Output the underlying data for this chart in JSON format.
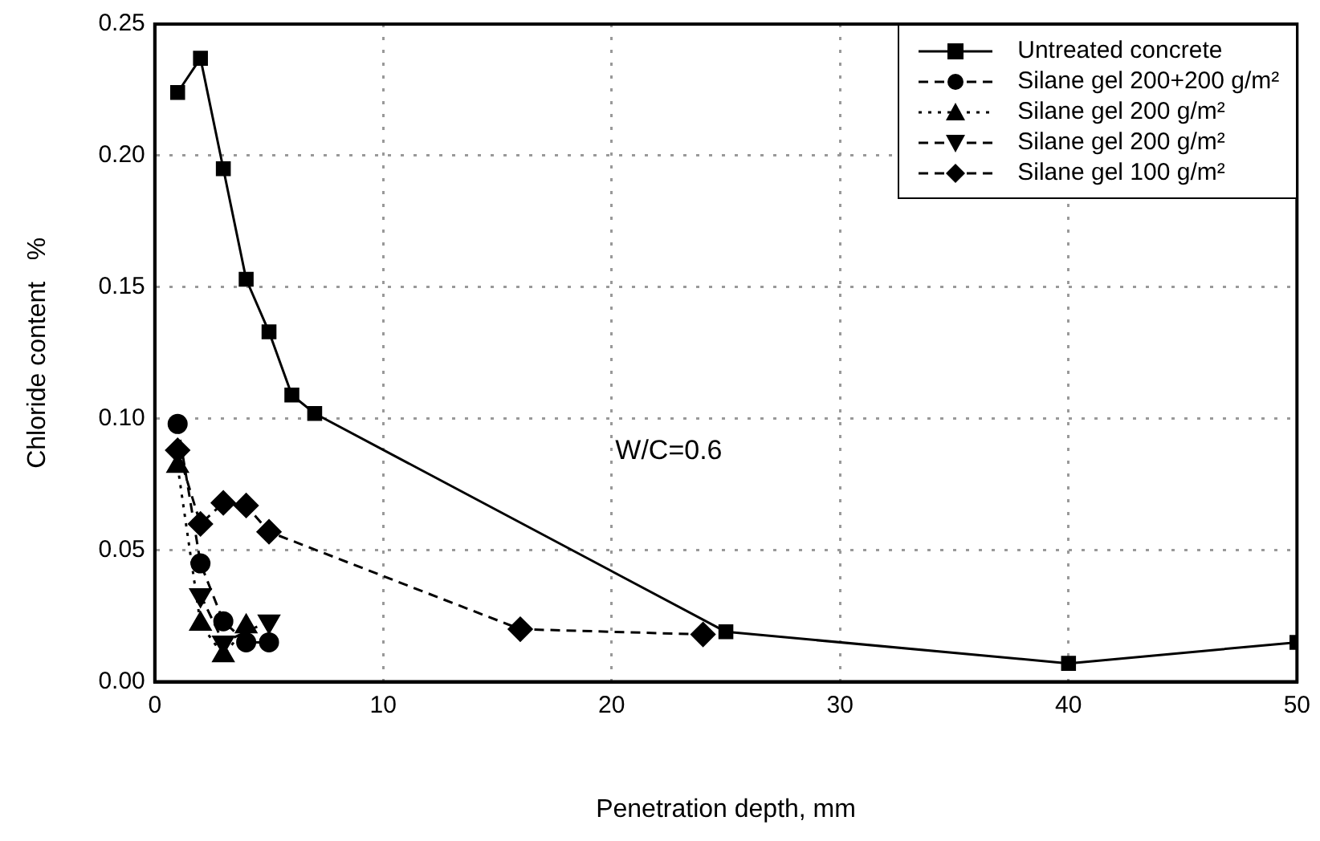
{
  "chart_data": {
    "type": "line",
    "xlabel": "Penetration depth, mm",
    "ylabel": "Chloride content   %",
    "xlim": [
      0,
      50
    ],
    "xticks": [
      0,
      10,
      20,
      30,
      40,
      50
    ],
    "ylim": [
      0,
      0.25
    ],
    "yticks": [
      {
        "value": 0,
        "label": "0.00"
      },
      {
        "value": 0.05,
        "label": "0.05"
      },
      {
        "value": 0.1,
        "label": "0.10"
      },
      {
        "value": 0.15,
        "label": "0.15"
      },
      {
        "value": 0.2,
        "label": "0.20"
      },
      {
        "value": 0.25,
        "label": "0.25"
      }
    ],
    "grid": true,
    "legend": "top right",
    "annotations": [
      "W/C=0.6"
    ],
    "series": [
      {
        "name": "Untreated concrete",
        "color": "#000000",
        "marker": "square",
        "line_style": "solid",
        "x": [
          1,
          2,
          3,
          4,
          5,
          6,
          7,
          25,
          40,
          50
        ],
        "values": [
          0.224,
          0.237,
          0.195,
          0.153,
          0.133,
          0.109,
          0.102,
          0.019,
          0.007,
          0.015
        ]
      },
      {
        "name": "Silane gel 200+200 g/m²",
        "color": "#000000",
        "marker": "circle",
        "line_style": "dashed",
        "x": [
          1,
          2,
          3,
          4,
          5
        ],
        "values": [
          0.098,
          0.045,
          0.023,
          0.015,
          0.015
        ]
      },
      {
        "name": "Silane gel 200 g/m²",
        "color": "#000000",
        "marker": "triangle",
        "line_style": "dotted",
        "x": [
          1,
          2,
          3,
          4
        ],
        "values": [
          0.082,
          0.022,
          0.01,
          0.021
        ]
      },
      {
        "name": "Silane gel 200 g/m²",
        "color": "#000000",
        "marker": "triangle-down",
        "line_style": "dashed",
        "x": [
          2,
          3,
          5
        ],
        "values": [
          0.033,
          0.015,
          0.023
        ]
      },
      {
        "name": "Silane gel 100 g/m²",
        "color": "#000000",
        "marker": "diamond",
        "line_style": "dashed",
        "x": [
          1,
          2,
          3,
          4,
          5,
          16,
          24
        ],
        "values": [
          0.088,
          0.06,
          0.068,
          0.067,
          0.057,
          0.02,
          0.018
        ]
      }
    ]
  }
}
